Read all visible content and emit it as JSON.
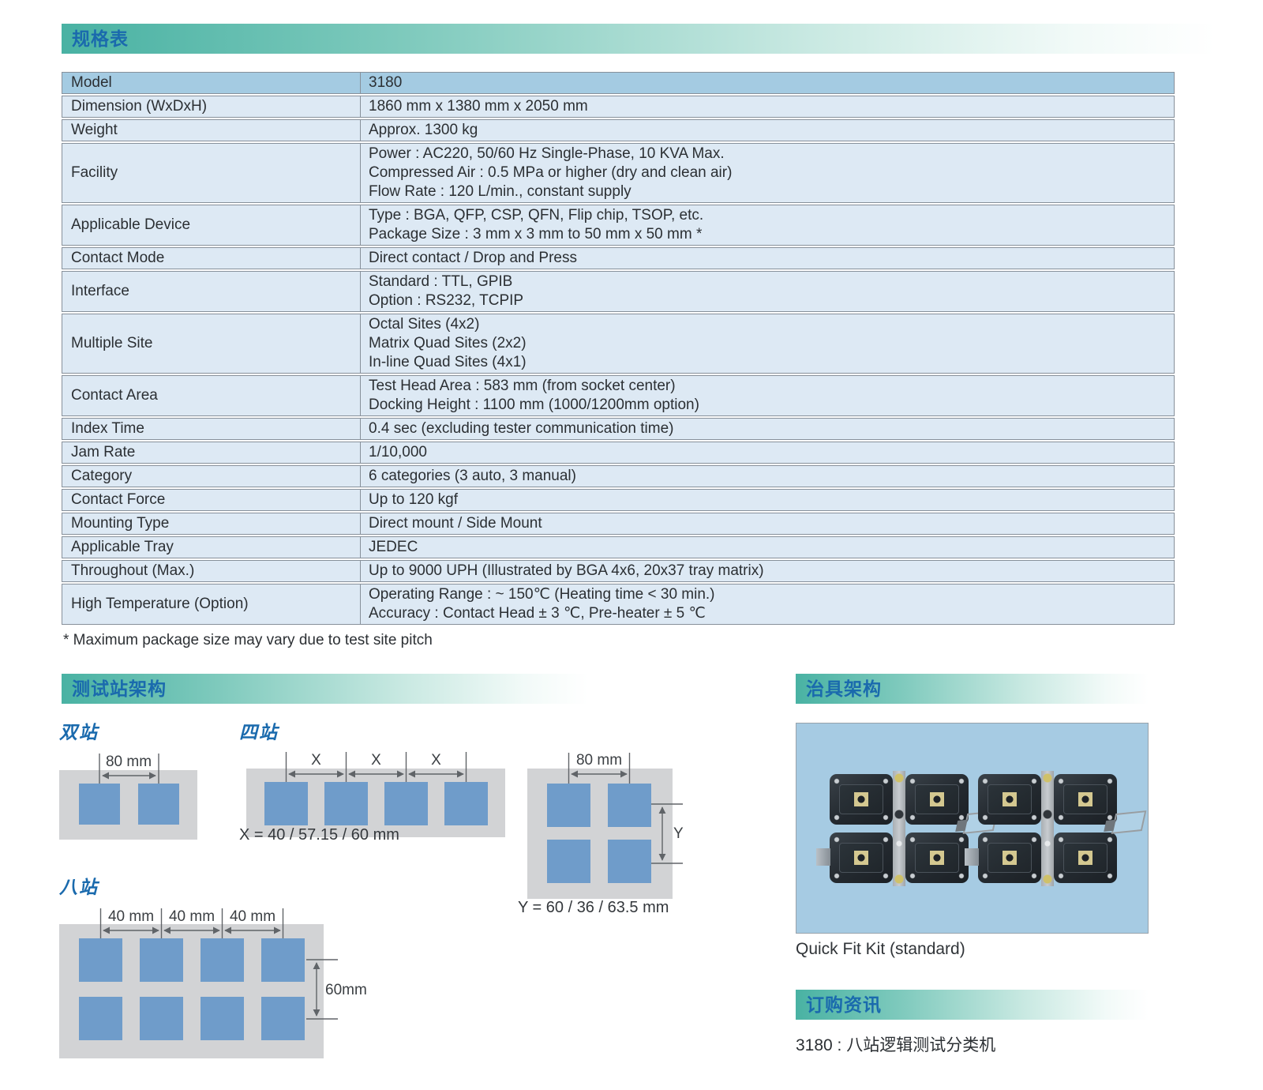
{
  "spec_section": {
    "title": "规格表"
  },
  "spec_table": {
    "rows": [
      {
        "label": "Model",
        "lines": [
          "3180"
        ],
        "highlight": true
      },
      {
        "label": "Dimension (WxDxH)",
        "lines": [
          "1860 mm x 1380 mm x 2050 mm"
        ]
      },
      {
        "label": "Weight",
        "lines": [
          "Approx. 1300 kg"
        ]
      },
      {
        "label": "Facility",
        "lines": [
          "Power : AC220, 50/60 Hz Single-Phase, 10 KVA Max.",
          "Compressed Air : 0.5 MPa or higher (dry and clean air)",
          "Flow Rate : 120 L/min., constant supply"
        ]
      },
      {
        "label": "Applicable Device",
        "lines": [
          "Type : BGA, QFP, CSP, QFN, Flip chip, TSOP, etc.",
          "Package Size : 3 mm x 3 mm to 50 mm x 50 mm *"
        ]
      },
      {
        "label": "Contact Mode",
        "lines": [
          "Direct contact /  Drop and Press"
        ]
      },
      {
        "label": "Interface",
        "lines": [
          "Standard : TTL, GPIB",
          "Option : RS232, TCPIP"
        ]
      },
      {
        "label": "Multiple Site",
        "lines": [
          "Octal Sites (4x2)",
          "Matrix Quad Sites (2x2)",
          "In-line Quad Sites (4x1)"
        ]
      },
      {
        "label": "Contact Area",
        "lines": [
          "Test Head Area : 583 mm (from socket center)",
          "Docking Height : 1100 mm (1000/1200mm option)"
        ]
      },
      {
        "label": "Index Time",
        "lines": [
          "0.4 sec (excluding tester communication time)"
        ]
      },
      {
        "label": "Jam Rate",
        "lines": [
          "1/10,000"
        ]
      },
      {
        "label": "Category",
        "lines": [
          "6 categories (3 auto, 3 manual)"
        ]
      },
      {
        "label": "Contact Force",
        "lines": [
          "Up to 120 kgf"
        ]
      },
      {
        "label": "Mounting Type",
        "lines": [
          "Direct mount / Side Mount"
        ]
      },
      {
        "label": "Applicable Tray",
        "lines": [
          "JEDEC"
        ]
      },
      {
        "label": "Throughout (Max.)",
        "lines": [
          "Up to 9000 UPH (Illustrated by BGA 4x6, 20x37 tray matrix)"
        ]
      },
      {
        "label": "High Temperature (Option)",
        "lines": [
          "Operating Range : ~ 150℃ (Heating time < 30 min.)",
          "Accuracy : Contact Head ± 3 ℃, Pre-heater ± 5 ℃"
        ]
      }
    ]
  },
  "footnote": "* Maximum package size may vary due to test site pitch",
  "stations_section": {
    "title": "测试站架构",
    "dual": {
      "label": "双站",
      "pitch_label": "80 mm"
    },
    "quad_inline": {
      "label": "四站",
      "pitch_labels": [
        "X",
        "X",
        "X"
      ],
      "caption": "X = 40 / 57.15 / 60 mm"
    },
    "quad_matrix": {
      "pitch_top_label": "80 mm",
      "pitch_right_label": "Y",
      "caption": "Y = 60 / 36 / 63.5 mm"
    },
    "octal": {
      "label": "八站",
      "pitch_labels": [
        "40 mm",
        "40 mm",
        "40 mm"
      ],
      "pitch_right_label": "60mm"
    }
  },
  "fixture_section": {
    "title": "治具架构",
    "caption": "Quick Fit Kit (standard)"
  },
  "order_section": {
    "title": "订购资讯",
    "text": "3180 : 八站逻辑测试分类机"
  },
  "colors": {
    "accent-teal": "#49b2a3",
    "title-blue": "#1a6aad",
    "row-highlight": "#a4cbe2",
    "row-light": "#dde9f4",
    "table-border": "#87909a",
    "diagram-gray": "#d2d3d5",
    "site-blue": "#6f9cca",
    "dim-line": "#606468",
    "photo-bg": "#a6cbe3",
    "text-dark": "#2b2f33"
  }
}
